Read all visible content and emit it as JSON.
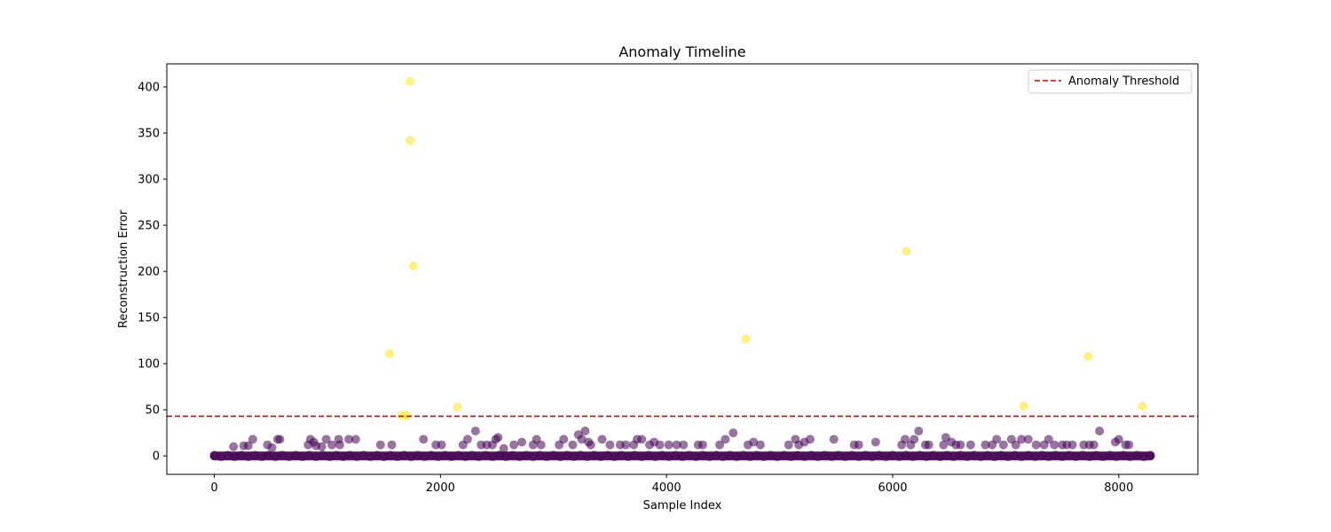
{
  "chart_data": {
    "type": "scatter",
    "title": "Anomaly Timeline",
    "xlabel": "Sample Index",
    "ylabel": "Reconstruction Error",
    "xlim": [
      -420,
      8700
    ],
    "ylim": [
      -20,
      425
    ],
    "xticks": [
      0,
      2000,
      4000,
      6000,
      8000
    ],
    "yticks": [
      0,
      50,
      100,
      150,
      200,
      250,
      300,
      350,
      400
    ],
    "grid": false,
    "legend_position": "top-right",
    "colors": {
      "normal": "#440154",
      "anomaly": "#fde725",
      "threshold": "#e00000"
    },
    "threshold": {
      "name": "Anomaly Threshold",
      "value": 43,
      "style": "dashed"
    },
    "baseline_range": [
      0,
      8280
    ],
    "normal_points": [
      [
        170,
        10
      ],
      [
        260,
        11
      ],
      [
        300,
        11
      ],
      [
        340,
        18
      ],
      [
        470,
        12
      ],
      [
        510,
        9
      ],
      [
        560,
        18
      ],
      [
        580,
        18
      ],
      [
        830,
        12
      ],
      [
        850,
        18
      ],
      [
        880,
        15
      ],
      [
        900,
        11
      ],
      [
        950,
        10
      ],
      [
        990,
        18
      ],
      [
        1040,
        12
      ],
      [
        1100,
        18
      ],
      [
        1110,
        12
      ],
      [
        1190,
        18
      ],
      [
        1250,
        18
      ],
      [
        1470,
        12
      ],
      [
        1570,
        12
      ],
      [
        1850,
        18
      ],
      [
        1960,
        12
      ],
      [
        2010,
        12
      ],
      [
        2200,
        12
      ],
      [
        2240,
        18
      ],
      [
        2310,
        27
      ],
      [
        2360,
        12
      ],
      [
        2410,
        12
      ],
      [
        2460,
        12
      ],
      [
        2490,
        18
      ],
      [
        2510,
        20
      ],
      [
        2560,
        8
      ],
      [
        2650,
        12
      ],
      [
        2720,
        15
      ],
      [
        2820,
        12
      ],
      [
        2850,
        18
      ],
      [
        2890,
        12
      ],
      [
        3050,
        12
      ],
      [
        3090,
        18
      ],
      [
        3170,
        12
      ],
      [
        3220,
        23
      ],
      [
        3250,
        18
      ],
      [
        3280,
        27
      ],
      [
        3310,
        15
      ],
      [
        3330,
        12
      ],
      [
        3430,
        18
      ],
      [
        3500,
        12
      ],
      [
        3590,
        12
      ],
      [
        3640,
        12
      ],
      [
        3710,
        12
      ],
      [
        3740,
        18
      ],
      [
        3780,
        18
      ],
      [
        3850,
        12
      ],
      [
        3890,
        15
      ],
      [
        3940,
        12
      ],
      [
        4020,
        12
      ],
      [
        4090,
        12
      ],
      [
        4150,
        12
      ],
      [
        4280,
        12
      ],
      [
        4320,
        12
      ],
      [
        4470,
        12
      ],
      [
        4520,
        18
      ],
      [
        4590,
        25
      ],
      [
        4720,
        12
      ],
      [
        4770,
        15
      ],
      [
        4830,
        12
      ],
      [
        5080,
        12
      ],
      [
        5140,
        18
      ],
      [
        5170,
        12
      ],
      [
        5220,
        15
      ],
      [
        5270,
        18
      ],
      [
        5480,
        18
      ],
      [
        5660,
        12
      ],
      [
        5700,
        12
      ],
      [
        5850,
        15
      ],
      [
        6080,
        12
      ],
      [
        6110,
        18
      ],
      [
        6160,
        12
      ],
      [
        6190,
        18
      ],
      [
        6230,
        27
      ],
      [
        6290,
        12
      ],
      [
        6320,
        12
      ],
      [
        6450,
        12
      ],
      [
        6470,
        20
      ],
      [
        6520,
        15
      ],
      [
        6560,
        12
      ],
      [
        6600,
        12
      ],
      [
        6690,
        12
      ],
      [
        6820,
        12
      ],
      [
        6880,
        12
      ],
      [
        6920,
        18
      ],
      [
        6980,
        12
      ],
      [
        7050,
        18
      ],
      [
        7090,
        12
      ],
      [
        7140,
        18
      ],
      [
        7200,
        18
      ],
      [
        7270,
        12
      ],
      [
        7340,
        12
      ],
      [
        7380,
        18
      ],
      [
        7430,
        12
      ],
      [
        7500,
        12
      ],
      [
        7540,
        12
      ],
      [
        7590,
        12
      ],
      [
        7690,
        12
      ],
      [
        7740,
        12
      ],
      [
        7780,
        12
      ],
      [
        7830,
        27
      ],
      [
        7970,
        15
      ],
      [
        8000,
        18
      ],
      [
        8060,
        12
      ],
      [
        8090,
        12
      ]
    ],
    "anomaly_points": [
      [
        1550,
        111
      ],
      [
        1660,
        44
      ],
      [
        1700,
        44
      ],
      [
        1730,
        406
      ],
      [
        1730,
        342
      ],
      [
        1760,
        206
      ],
      [
        2150,
        53
      ],
      [
        4700,
        127
      ],
      [
        6120,
        222
      ],
      [
        7160,
        54
      ],
      [
        7730,
        108
      ],
      [
        8210,
        54
      ]
    ]
  }
}
